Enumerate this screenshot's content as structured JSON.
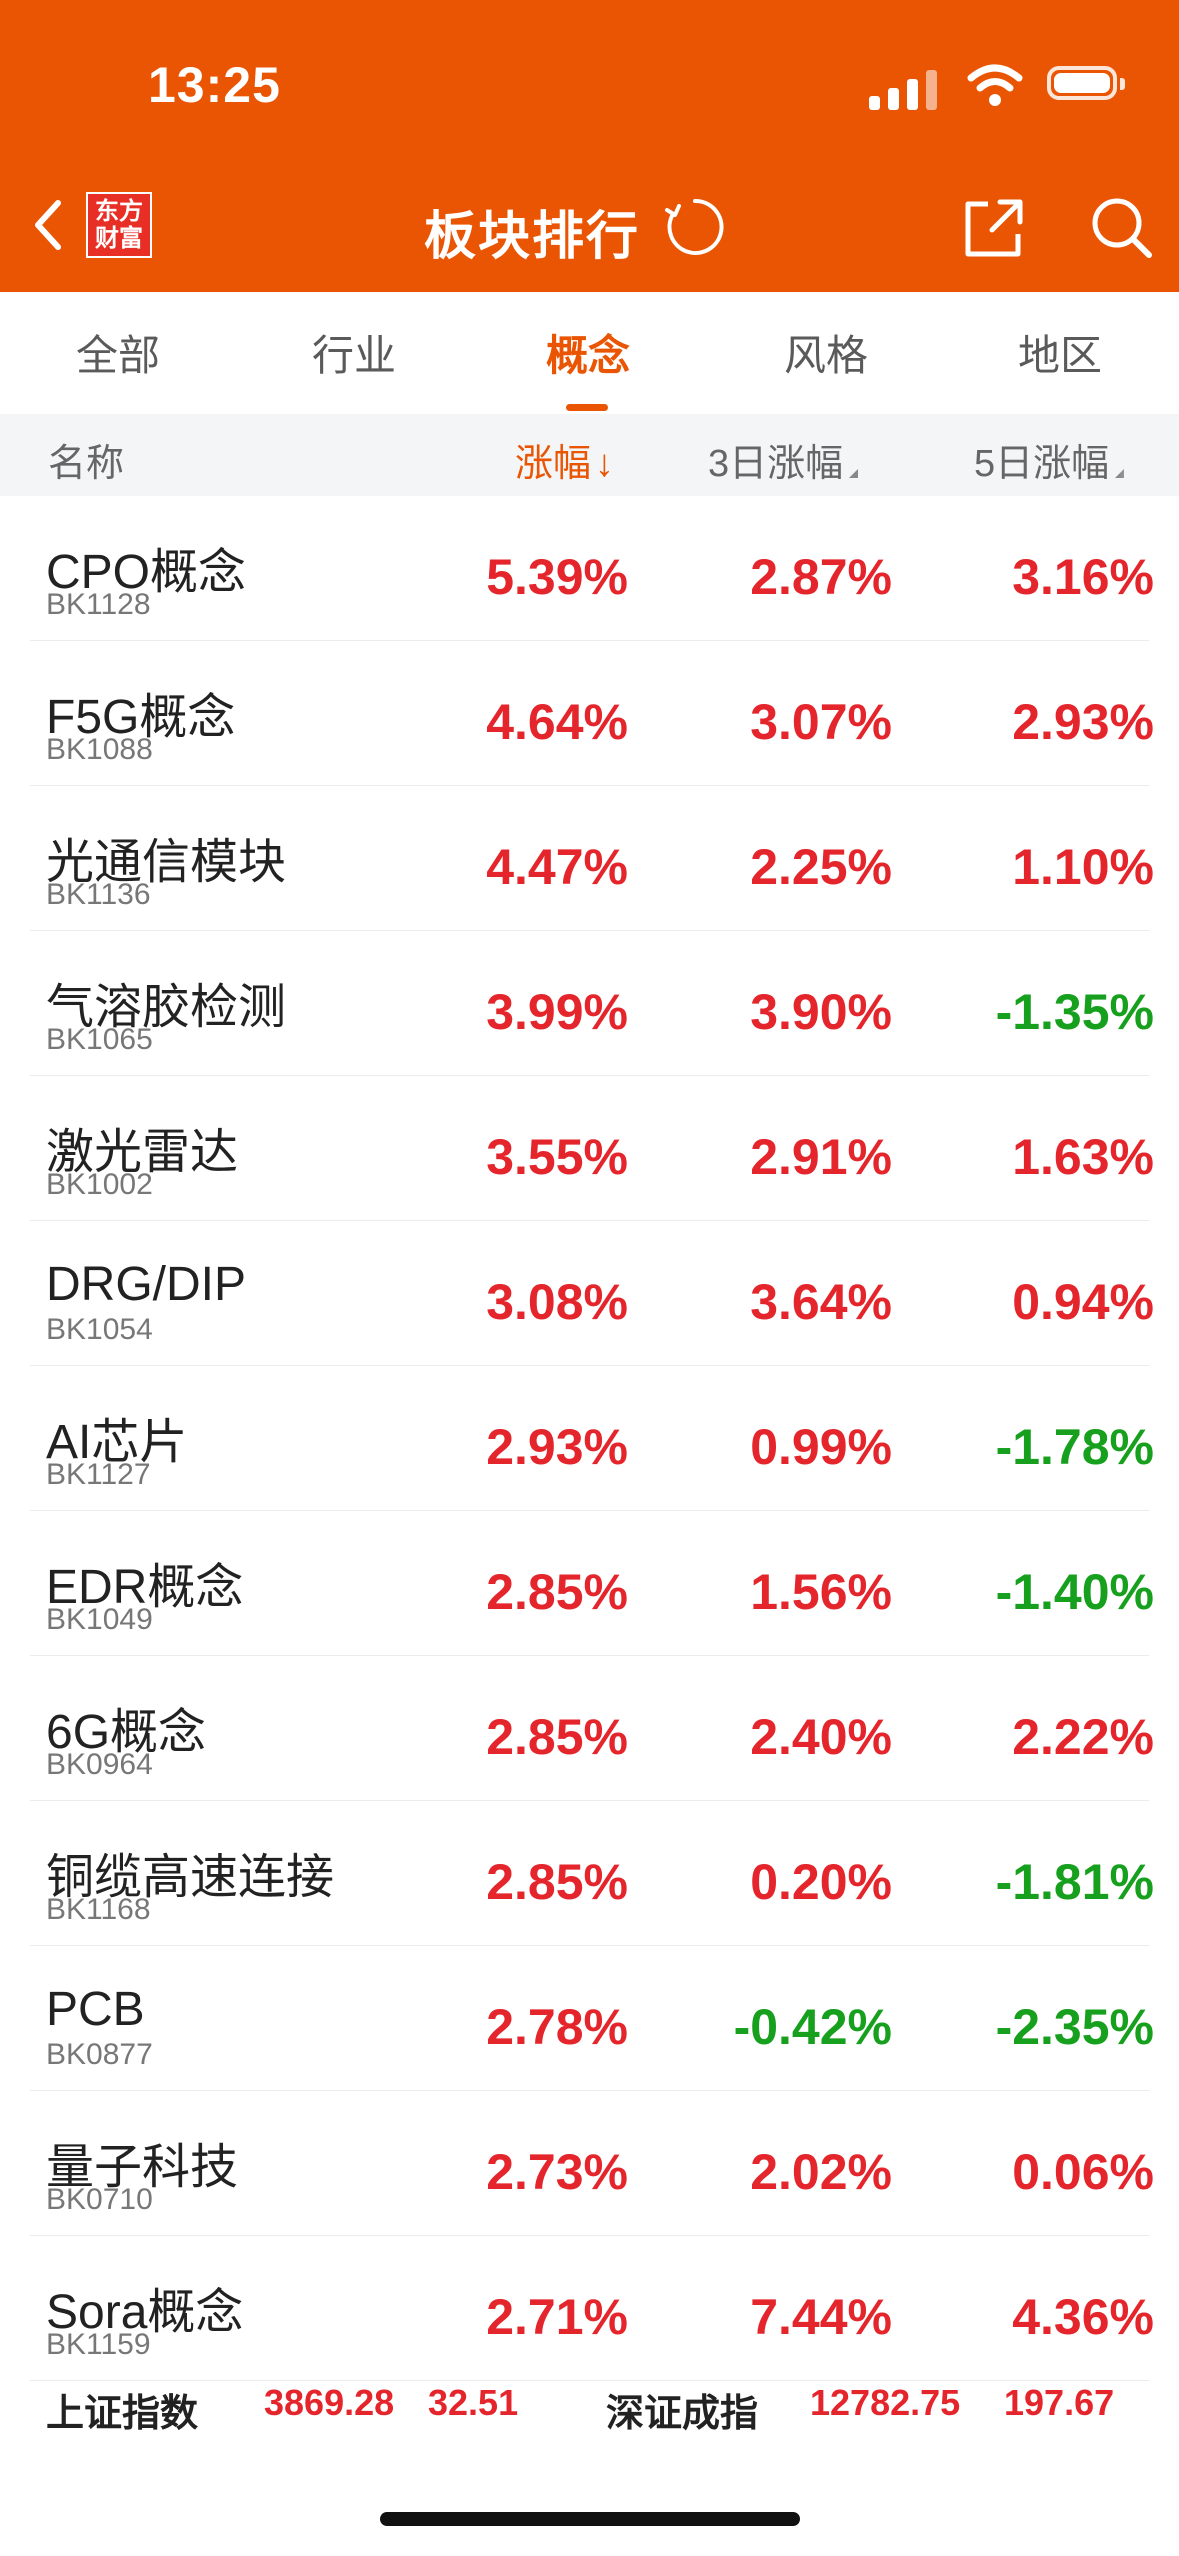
{
  "status_bar": {
    "time": "13:25"
  },
  "nav": {
    "title": "板块排行",
    "logo_line1": "东方",
    "logo_line2": "财富",
    "icons": [
      "chevron-left-icon",
      "refresh-icon",
      "share-icon",
      "search-icon"
    ]
  },
  "tabs": [
    {
      "label": "全部",
      "active": false
    },
    {
      "label": "行业",
      "active": false
    },
    {
      "label": "概念",
      "active": true
    },
    {
      "label": "风格",
      "active": false
    },
    {
      "label": "地区",
      "active": false
    }
  ],
  "columns": {
    "name": "名称",
    "change": "涨幅",
    "change_sort": "↓",
    "change_3d": "3日涨幅",
    "change_5d": "5日涨幅"
  },
  "rows": [
    {
      "name": "CPO概念",
      "code": "BK1128",
      "change": "5.39%",
      "change_3d": "2.87%",
      "change_5d": "3.16%"
    },
    {
      "name": "F5G概念",
      "code": "BK1088",
      "change": "4.64%",
      "change_3d": "3.07%",
      "change_5d": "2.93%"
    },
    {
      "name": "光通信模块",
      "code": "BK1136",
      "change": "4.47%",
      "change_3d": "2.25%",
      "change_5d": "1.10%"
    },
    {
      "name": "气溶胶检测",
      "code": "BK1065",
      "change": "3.99%",
      "change_3d": "3.90%",
      "change_5d": "-1.35%"
    },
    {
      "name": "激光雷达",
      "code": "BK1002",
      "change": "3.55%",
      "change_3d": "2.91%",
      "change_5d": "1.63%"
    },
    {
      "name": "DRG/DIP",
      "code": "BK1054",
      "change": "3.08%",
      "change_3d": "3.64%",
      "change_5d": "0.94%"
    },
    {
      "name": "AI芯片",
      "code": "BK1127",
      "change": "2.93%",
      "change_3d": "0.99%",
      "change_5d": "-1.78%"
    },
    {
      "name": "EDR概念",
      "code": "BK1049",
      "change": "2.85%",
      "change_3d": "1.56%",
      "change_5d": "-1.40%"
    },
    {
      "name": "6G概念",
      "code": "BK0964",
      "change": "2.85%",
      "change_3d": "2.40%",
      "change_5d": "2.22%"
    },
    {
      "name": "铜缆高速连接",
      "code": "BK1168",
      "change": "2.85%",
      "change_3d": "0.20%",
      "change_5d": "-1.81%"
    },
    {
      "name": "PCB",
      "code": "BK0877",
      "change": "2.78%",
      "change_3d": "-0.42%",
      "change_5d": "-2.35%"
    },
    {
      "name": "量子科技",
      "code": "BK0710",
      "change": "2.73%",
      "change_3d": "2.02%",
      "change_5d": "0.06%"
    },
    {
      "name": "Sora概念",
      "code": "BK1159",
      "change": "2.71%",
      "change_3d": "7.44%",
      "change_5d": "4.36%"
    }
  ],
  "index_bar": {
    "sh_name": "上证指数",
    "sh_value": "3869.28",
    "sh_change": "32.51",
    "sz_name": "深证成指",
    "sz_value": "12782.75",
    "sz_change": "197.67"
  },
  "colors": {
    "brand": "#EA5504",
    "up": "#E4262C",
    "down": "#17A01E"
  }
}
